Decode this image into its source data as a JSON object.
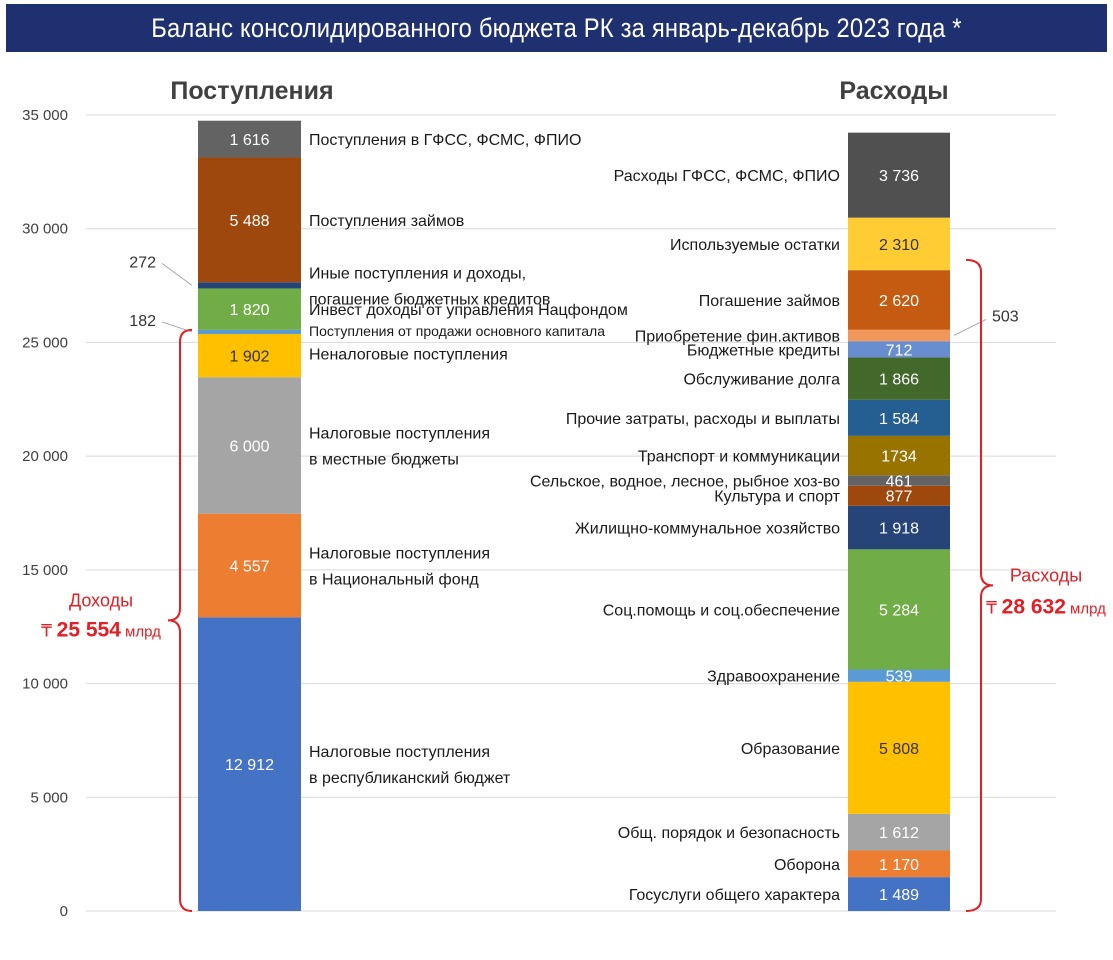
{
  "title": "Баланс консолидированного бюджета РК за январь-декабрь 2023 года *",
  "chart_data": {
    "type": "bar",
    "stacked": true,
    "ylim": [
      0,
      35000
    ],
    "yticks": [
      0,
      5000,
      10000,
      15000,
      20000,
      25000,
      30000,
      35000
    ],
    "ytick_labels": [
      "0",
      "5 000",
      "10 000",
      "15 000",
      "20 000",
      "25 000",
      "30 000",
      "35 000"
    ],
    "grid": true,
    "columns": [
      {
        "name": "Поступления",
        "segments": [
          {
            "value": 12912,
            "value_label": "12 912",
            "label": [
              "Налоговые поступления",
              "в республиканский бюджет"
            ],
            "color": "#4472c4",
            "label_color": "#ffffff"
          },
          {
            "value": 4557,
            "value_label": "4 557",
            "label": [
              "Налоговые поступления",
              "в Национальный фонд"
            ],
            "color": "#ed7d31",
            "label_color": "#ffffff"
          },
          {
            "value": 6000,
            "value_label": "6 000",
            "label": [
              "Налоговые поступления",
              "в местные бюджеты"
            ],
            "color": "#a5a5a5",
            "label_color": "#ffffff"
          },
          {
            "value": 1902,
            "value_label": "1 902",
            "label": [
              "Неналоговые поступления"
            ],
            "color": "#ffc000",
            "label_color": "#333333"
          },
          {
            "value": 182,
            "value_label": "182",
            "label": [
              "Поступления от продажи основного капитала"
            ],
            "color": "#5b9bd5",
            "label_color": "#333333",
            "outside": true
          },
          {
            "value": 1820,
            "value_label": "1 820",
            "label": [
              "Инвест доходы от управления Нацфондом"
            ],
            "color": "#70ad47",
            "label_color": "#ffffff"
          },
          {
            "value": 272,
            "value_label": "272",
            "label": [
              "Иные поступления и доходы,",
              "погашение бюджетных кредитов"
            ],
            "color": "#264478",
            "label_color": "#333333",
            "outside": true
          },
          {
            "value": 5488,
            "value_label": "5 488",
            "label": [
              "Поступления займов"
            ],
            "color": "#9e480e",
            "label_color": "#ffffff"
          },
          {
            "value": 1616,
            "value_label": "1 616",
            "label": [
              "Поступления в ГФСС, ФСМС, ФПИО"
            ],
            "color": "#636363",
            "label_color": "#ffffff"
          }
        ]
      },
      {
        "name": "Расходы",
        "segments": [
          {
            "value": 1489,
            "value_label": "1 489",
            "label": [
              "Госуслуги общего характера"
            ],
            "color": "#4472c4",
            "label_color": "#ffffff"
          },
          {
            "value": 1170,
            "value_label": "1 170",
            "label": [
              "Оборона"
            ],
            "color": "#ed7d31",
            "label_color": "#ffffff"
          },
          {
            "value": 1612,
            "value_label": "1 612",
            "label": [
              "Общ. порядок и безопасность"
            ],
            "color": "#a5a5a5",
            "label_color": "#ffffff"
          },
          {
            "value": 5808,
            "value_label": "5 808",
            "label": [
              "Образование"
            ],
            "color": "#ffc000",
            "label_color": "#333333"
          },
          {
            "value": 539,
            "value_label": "539",
            "label": [
              "Здравоохранение"
            ],
            "color": "#5b9bd5",
            "label_color": "#ffffff"
          },
          {
            "value": 5284,
            "value_label": "5 284",
            "label": [
              "Соц.помощь и соц.обеспечение"
            ],
            "color": "#70ad47",
            "label_color": "#ffffff"
          },
          {
            "value": 1918,
            "value_label": "1 918",
            "label": [
              "Жилищно-коммунальное хозяйство"
            ],
            "color": "#264478",
            "label_color": "#ffffff"
          },
          {
            "value": 877,
            "value_label": "877",
            "label": [
              "Культура и спорт"
            ],
            "color": "#9e480e",
            "label_color": "#ffffff"
          },
          {
            "value": 461,
            "value_label": "461",
            "label": [
              "Сельское, водное, лесное, рыбное хоз-во"
            ],
            "color": "#636363",
            "label_color": "#ffffff"
          },
          {
            "value": 1734,
            "value_label": "1734",
            "label": [
              "Транспорт и коммуникации"
            ],
            "color": "#997300",
            "label_color": "#ffffff"
          },
          {
            "value": 1584,
            "value_label": "1 584",
            "label": [
              "Прочие затраты, расходы и выплаты"
            ],
            "color": "#255e91",
            "label_color": "#ffffff"
          },
          {
            "value": 1866,
            "value_label": "1 866",
            "label": [
              "Обслуживание долга"
            ],
            "color": "#43682b",
            "label_color": "#ffffff"
          },
          {
            "value": 712,
            "value_label": "712",
            "label": [
              "Бюджетные кредиты"
            ],
            "color": "#698ed0",
            "label_color": "#ffffff"
          },
          {
            "value": 503,
            "value_label": "503",
            "label": [
              "Приобретение фин.активов"
            ],
            "color": "#f1975a",
            "label_color": "#333333",
            "outside": true
          },
          {
            "value": 2620,
            "value_label": "2 620",
            "label": [
              "Погашение займов"
            ],
            "color": "#c55a11",
            "label_color": "#ffffff"
          },
          {
            "value": 2310,
            "value_label": "2 310",
            "label": [
              "Используемые остатки"
            ],
            "color": "#ffcd33",
            "label_color": "#333333"
          },
          {
            "value": 3736,
            "value_label": "3 736",
            "label": [
              "Расходы ГФСС, ФСМС, ФПИО"
            ],
            "color": "#505050",
            "label_color": "#ffffff"
          }
        ]
      }
    ],
    "annotations": [
      {
        "side": "left",
        "label": "Доходы",
        "currency": "₸",
        "amount": "25 554",
        "unit": "млрд",
        "from": 0,
        "to": 25554,
        "color": "#e31e24"
      },
      {
        "side": "right",
        "label": "Расходы",
        "currency": "₸",
        "amount": "28 632",
        "unit": "млрд",
        "from": 0,
        "to": 28632,
        "color": "#e31e24"
      }
    ]
  }
}
